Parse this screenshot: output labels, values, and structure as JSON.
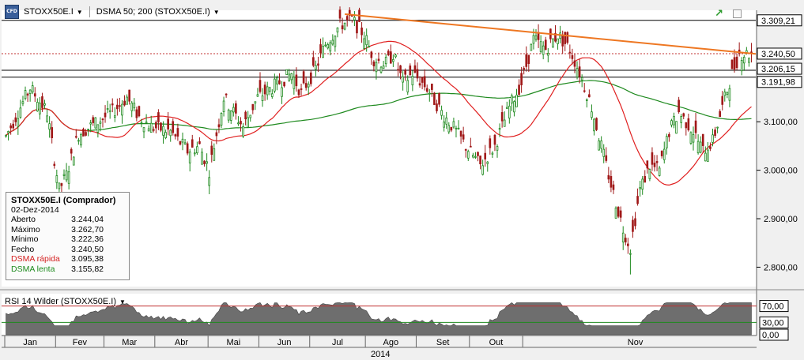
{
  "toolbar": {
    "icon_text": "CFD",
    "symbol": "STOXX50E.I",
    "indicator": "DSMA 50; 200 (STOXX50E.I)"
  },
  "info_box": {
    "title": "STOXX50E.I (Comprador)",
    "date": "02-Dez-2014",
    "rows": [
      {
        "label": "Aberto",
        "value": "3.244,04",
        "color": "#000000"
      },
      {
        "label": "Máximo",
        "value": "3.262,70",
        "color": "#000000"
      },
      {
        "label": "Mínimo",
        "value": "3.222,36",
        "color": "#000000"
      },
      {
        "label": "Fecho",
        "value": "3.240,50",
        "color": "#000000"
      },
      {
        "label": "DSMA rápida",
        "value": "3.095,38",
        "color": "#d42020"
      },
      {
        "label": "DSMA lenta",
        "value": "3.155,82",
        "color": "#1e8a1e"
      }
    ]
  },
  "price_axis": {
    "ticks": [
      "3.100,00",
      "3.000,00",
      "2.900,00",
      "2.800,00"
    ],
    "tick_values": [
      3100,
      3000,
      2900,
      2800
    ],
    "boxes": [
      {
        "label": "3.309,21",
        "value": 3309.21
      },
      {
        "label": "3.240,50",
        "value": 3240.5
      },
      {
        "label": "3.206,15",
        "value": 3206.15
      },
      {
        "label": "3.191,98",
        "value": 3191.98
      }
    ]
  },
  "rsi": {
    "title": "RSI 14 Wilder (STOXX50E.I)",
    "levels": [
      "70,00",
      "30,00",
      "0,00"
    ],
    "level_values": [
      70,
      30,
      0
    ]
  },
  "time_axis": {
    "months": [
      "Jan",
      "Fev",
      "Mar",
      "Abr",
      "Mai",
      "Jun",
      "Jul",
      "Ago",
      "Set",
      "Out",
      "Nov"
    ],
    "year": "2014"
  },
  "colors": {
    "up": "#1e8a1e",
    "down": "#a01818",
    "fast_ma": "#e02020",
    "slow_ma": "#1f8a1f",
    "trendline": "#ee7722",
    "rsi_fill": "#6e6e6e"
  },
  "chart_data": {
    "type": "candlestick",
    "ylim": [
      2760,
      3330
    ],
    "rsi_ylim": [
      0,
      100
    ],
    "months": [
      "Jan",
      "Fev",
      "Mar",
      "Abr",
      "Mai",
      "Jun",
      "Jul",
      "Ago",
      "Set",
      "Out",
      "Nov"
    ],
    "close_anchors": [
      [
        0,
        3070
      ],
      [
        10,
        3170
      ],
      [
        17,
        3120
      ],
      [
        22,
        2960
      ],
      [
        25,
        2990
      ],
      [
        30,
        3075
      ],
      [
        38,
        3100
      ],
      [
        44,
        3120
      ],
      [
        50,
        3150
      ],
      [
        55,
        3110
      ],
      [
        60,
        3090
      ],
      [
        68,
        3080
      ],
      [
        75,
        3040
      ],
      [
        80,
        3050
      ],
      [
        84,
        3000
      ],
      [
        90,
        3150
      ],
      [
        98,
        3090
      ],
      [
        104,
        3150
      ],
      [
        110,
        3170
      ],
      [
        118,
        3200
      ],
      [
        122,
        3160
      ],
      [
        128,
        3210
      ],
      [
        132,
        3260
      ],
      [
        138,
        3300
      ],
      [
        143,
        3310
      ],
      [
        148,
        3280
      ],
      [
        152,
        3230
      ],
      [
        157,
        3220
      ],
      [
        160,
        3240
      ],
      [
        164,
        3180
      ],
      [
        168,
        3200
      ],
      [
        174,
        3170
      ],
      [
        180,
        3120
      ],
      [
        186,
        3080
      ],
      [
        190,
        3050
      ],
      [
        196,
        3010
      ],
      [
        202,
        3050
      ],
      [
        208,
        3130
      ],
      [
        213,
        3180
      ],
      [
        218,
        3270
      ],
      [
        223,
        3250
      ],
      [
        228,
        3280
      ],
      [
        233,
        3250
      ],
      [
        238,
        3190
      ],
      [
        242,
        3130
      ],
      [
        246,
        3050
      ],
      [
        250,
        2970
      ],
      [
        255,
        2880
      ],
      [
        258,
        2840
      ],
      [
        262,
        2960
      ],
      [
        266,
        3010
      ],
      [
        270,
        3000
      ],
      [
        274,
        3080
      ],
      [
        278,
        3120
      ],
      [
        284,
        3080
      ],
      [
        288,
        3040
      ],
      [
        292,
        3060
      ],
      [
        296,
        3130
      ],
      [
        300,
        3200
      ],
      [
        303,
        3240
      ],
      [
        308,
        3240
      ]
    ],
    "notable": {
      "high": 3309.21,
      "resistance_1": 3206.15,
      "resistance_2": 3191.98,
      "low": 2785,
      "last": {
        "date": "02-Dez-2014",
        "open": 3244.04,
        "high": 3262.7,
        "low": 3222.36,
        "close": 3240.5
      }
    },
    "trendline": [
      {
        "bar": 140,
        "value": 3322
      },
      {
        "bar": 315,
        "value": 3240
      }
    ],
    "series": [
      {
        "name": "DSMA rápida",
        "last": 3095.38
      },
      {
        "name": "DSMA lenta",
        "last": 3155.82
      }
    ]
  }
}
